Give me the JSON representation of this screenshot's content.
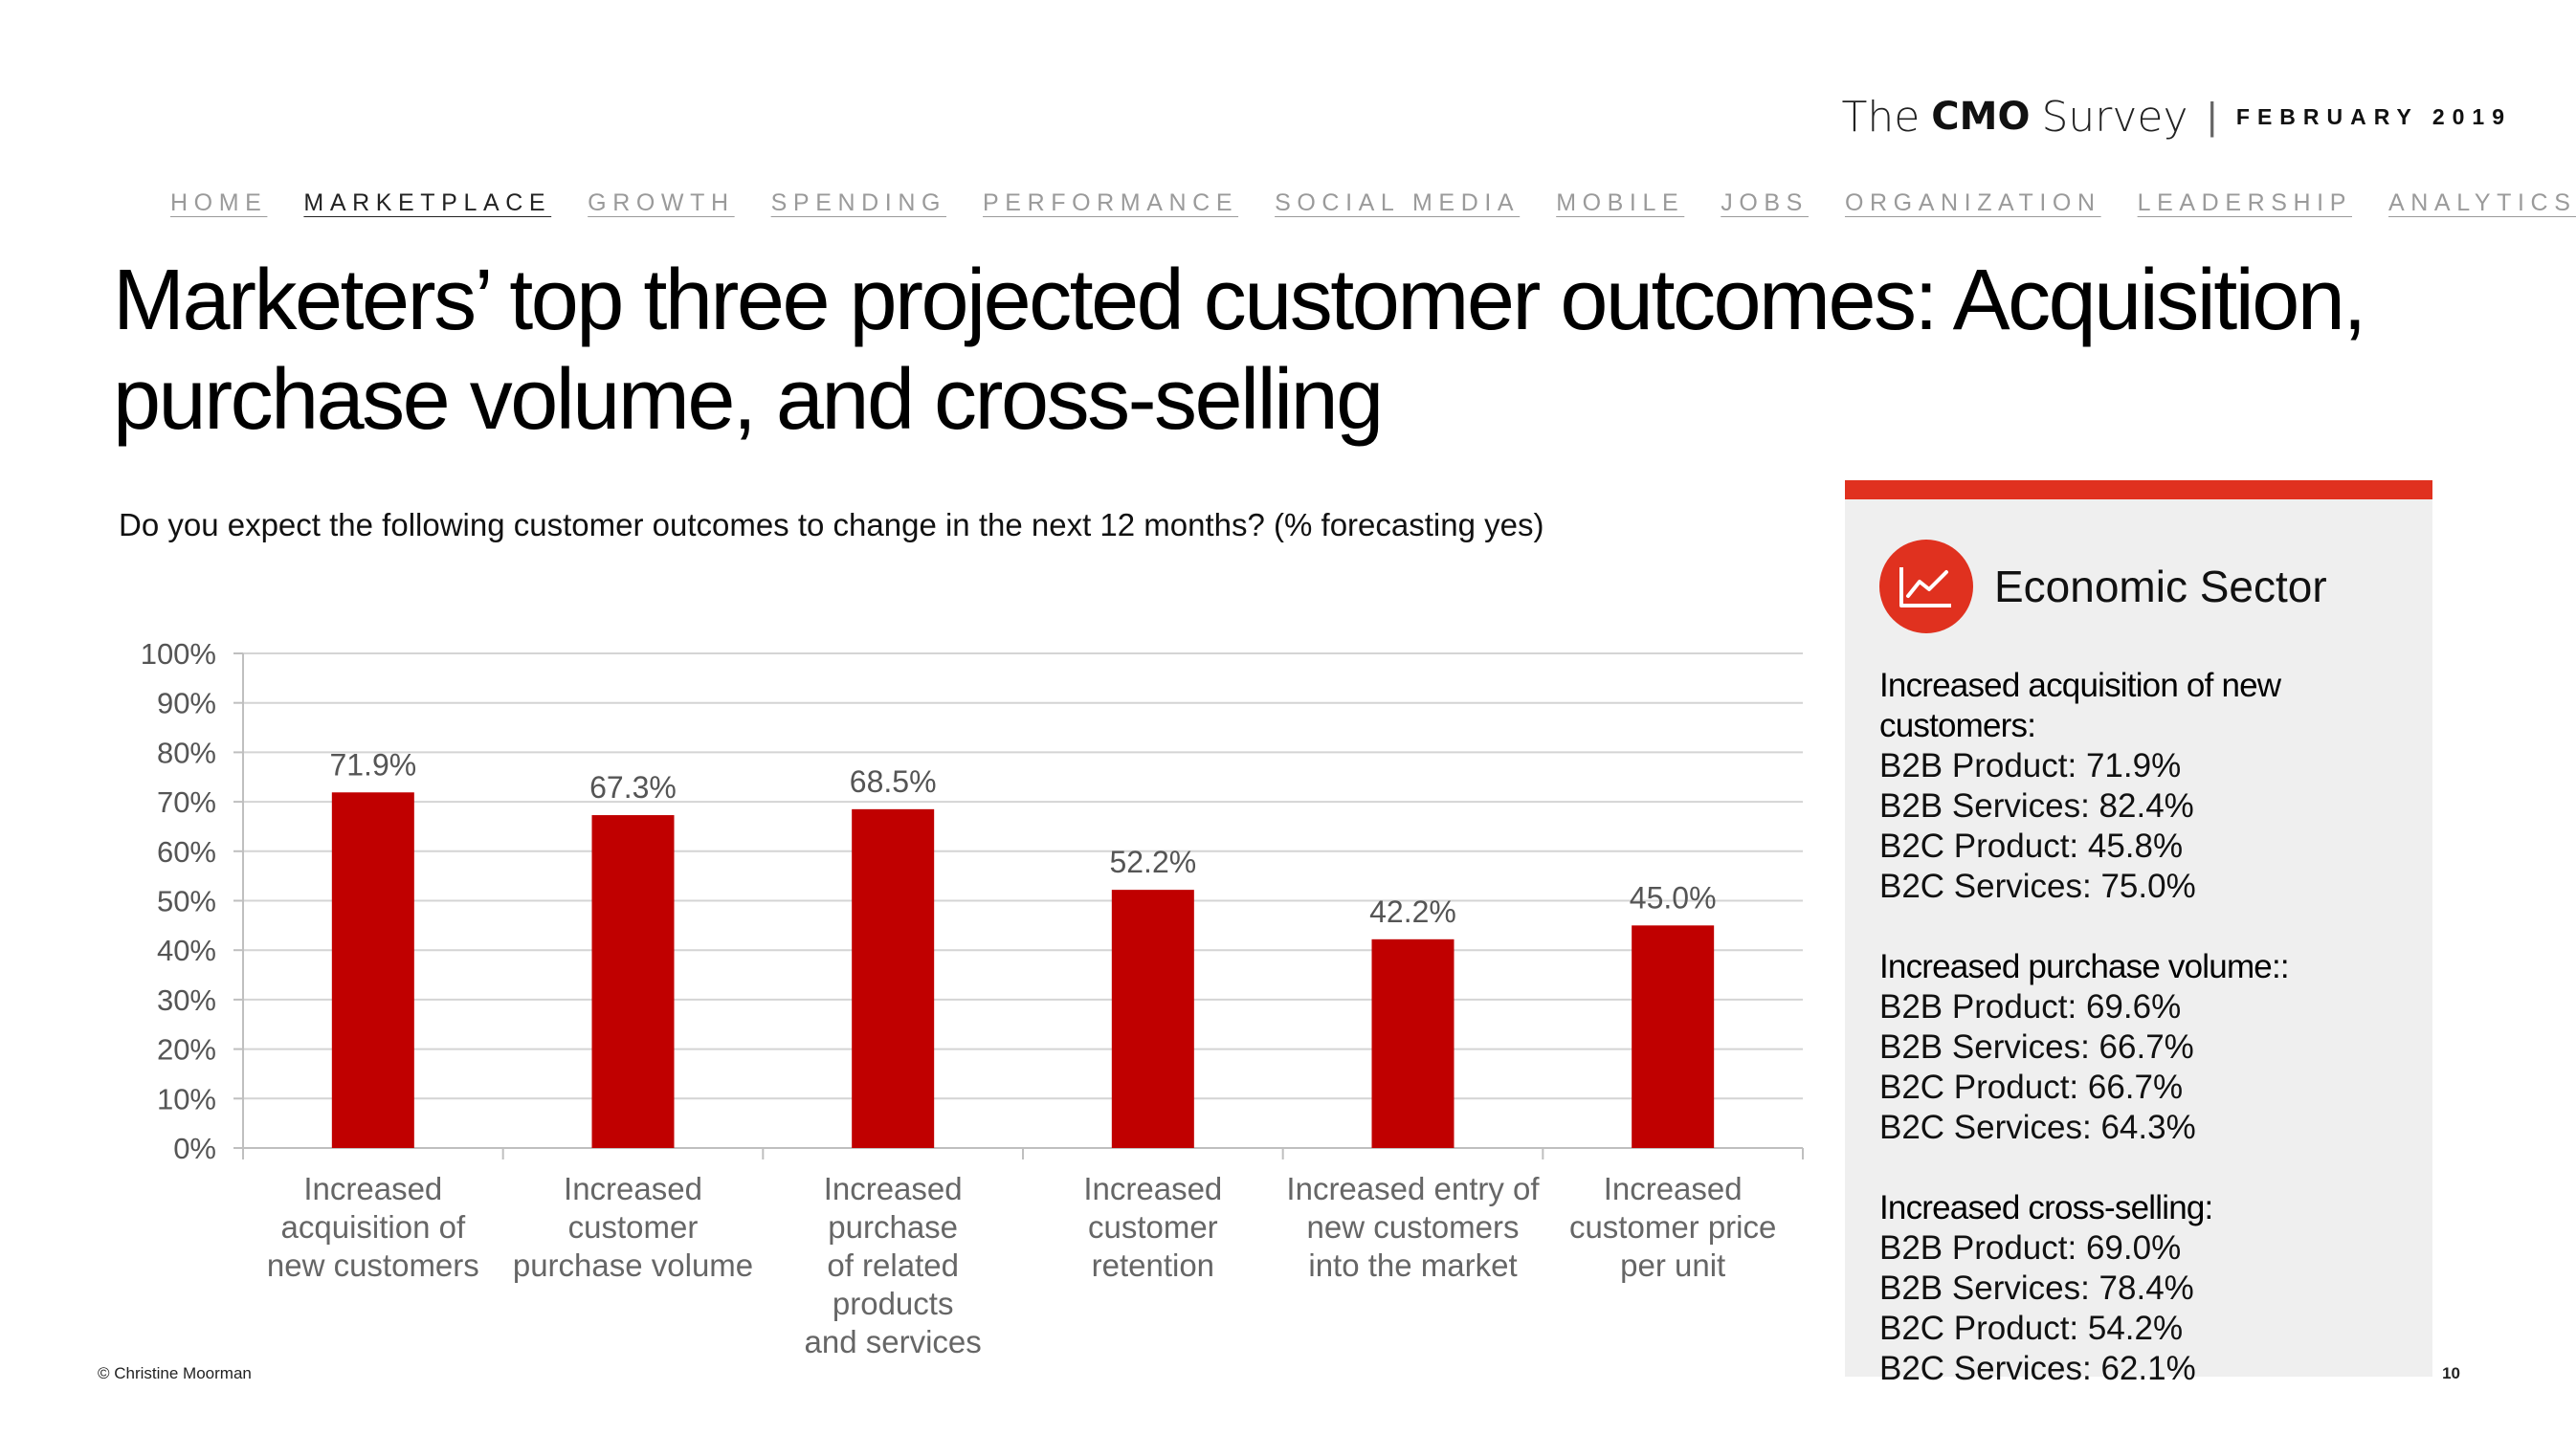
{
  "brand": {
    "the": "The",
    "cmo": "CMO",
    "survey": "Survey",
    "separator": "|",
    "date": "FEBRUARY 2019"
  },
  "nav": [
    {
      "label": "HOME",
      "active": false
    },
    {
      "label": "MARKETPLACE",
      "active": true
    },
    {
      "label": "GROWTH",
      "active": false
    },
    {
      "label": "SPENDING",
      "active": false
    },
    {
      "label": "PERFORMANCE",
      "active": false
    },
    {
      "label": "SOCIAL MEDIA",
      "active": false
    },
    {
      "label": "MOBILE",
      "active": false
    },
    {
      "label": "JOBS",
      "active": false
    },
    {
      "label": "ORGANIZATION",
      "active": false
    },
    {
      "label": "LEADERSHIP",
      "active": false
    },
    {
      "label": "ANALYTICS",
      "active": false
    }
  ],
  "title": "Marketers’ top three projected customer outcomes: Acquisition, purchase volume, and cross-selling",
  "question": "Do you expect the following customer outcomes to change in the next 12 months? (% forecasting yes)",
  "chart_data": {
    "type": "bar",
    "categories": [
      [
        "Increased",
        "acquisition of",
        "new customers"
      ],
      [
        "Increased",
        "customer",
        "purchase volume"
      ],
      [
        "Increased",
        "purchase",
        "of related",
        "products",
        "and services"
      ],
      [
        "Increased",
        "customer",
        "retention"
      ],
      [
        "Increased entry of",
        "new customers",
        "into the market"
      ],
      [
        "Increased",
        "customer price",
        "per unit"
      ]
    ],
    "values": [
      71.9,
      67.3,
      68.5,
      52.2,
      42.2,
      45.0
    ],
    "value_labels": [
      "71.9%",
      "67.3%",
      "68.5%",
      "52.2%",
      "42.2%",
      "45.0%"
    ],
    "yticks": [
      "0%",
      "10%",
      "20%",
      "30%",
      "40%",
      "50%",
      "60%",
      "70%",
      "80%",
      "90%",
      "100%"
    ],
    "ylim": [
      0,
      100
    ],
    "grid": true,
    "bar_color": "#c00000",
    "title": "",
    "xlabel": "",
    "ylabel": ""
  },
  "panel": {
    "title": "Economic Sector",
    "icon": "line-chart-icon",
    "accent": "#e0311f",
    "sections": [
      {
        "title": "Increased acquisition of new customers:",
        "items": [
          "B2B Product: 71.9%",
          "B2B Services: 82.4%",
          "B2C Product: 45.8%",
          "B2C Services: 75.0%"
        ]
      },
      {
        "title": "Increased purchase volume::",
        "items": [
          "B2B Product: 69.6%",
          "B2B Services: 66.7%",
          "B2C Product: 66.7%",
          "B2C Services: 64.3%"
        ]
      },
      {
        "title": "Increased cross-selling:",
        "items": [
          "B2B Product: 69.0%",
          "B2B Services: 78.4%",
          "B2C Product: 54.2%",
          "B2C Services: 62.1%"
        ]
      }
    ]
  },
  "footer": {
    "copyright": "© Christine Moorman",
    "page": "10"
  }
}
